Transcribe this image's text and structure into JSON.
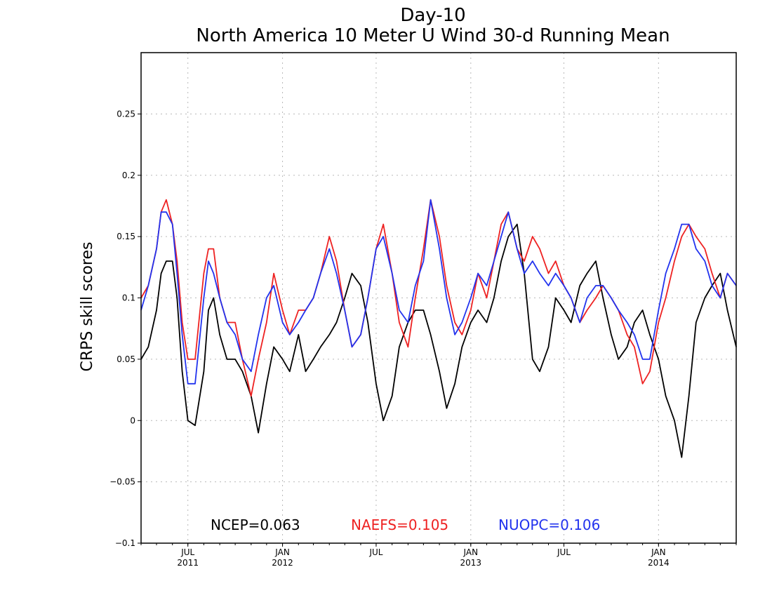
{
  "chart_data": {
    "type": "line",
    "title": "Day-10",
    "subtitle": "North America 10 Meter U Wind 30-d Running Mean",
    "xlabel": "",
    "ylabel": "CRPS skill scores",
    "ylim": [
      -0.1,
      0.3
    ],
    "xlim": [
      "2011-04-01",
      "2014-06-01"
    ],
    "grid": true,
    "yticks": [
      {
        "value": -0.1,
        "label": "−0.1"
      },
      {
        "value": -0.05,
        "label": "−0.05"
      },
      {
        "value": 0,
        "label": "0"
      },
      {
        "value": 0.05,
        "label": "0.05"
      },
      {
        "value": 0.1,
        "label": "0.1"
      },
      {
        "value": 0.15,
        "label": "0.15"
      },
      {
        "value": 0.2,
        "label": "0.2"
      },
      {
        "value": 0.25,
        "label": "0.25"
      }
    ],
    "xticks": [
      {
        "date": "2011-07-01",
        "label": "JUL",
        "sublabel": "2011"
      },
      {
        "date": "2012-01-01",
        "label": "JAN",
        "sublabel": "2012"
      },
      {
        "date": "2012-07-01",
        "label": "JUL",
        "sublabel": ""
      },
      {
        "date": "2013-01-01",
        "label": "JAN",
        "sublabel": "2013"
      },
      {
        "date": "2013-07-01",
        "label": "JUL",
        "sublabel": ""
      },
      {
        "date": "2014-01-01",
        "label": "JAN",
        "sublabel": "2014"
      }
    ],
    "legend_placement": "bottom-center",
    "x": [
      "2011-04-01",
      "2011-04-15",
      "2011-05-01",
      "2011-05-10",
      "2011-05-20",
      "2011-06-01",
      "2011-06-10",
      "2011-06-20",
      "2011-07-01",
      "2011-07-15",
      "2011-08-01",
      "2011-08-10",
      "2011-08-20",
      "2011-09-01",
      "2011-09-15",
      "2011-10-01",
      "2011-10-15",
      "2011-11-01",
      "2011-11-15",
      "2011-12-01",
      "2011-12-15",
      "2012-01-01",
      "2012-01-15",
      "2012-02-01",
      "2012-02-15",
      "2012-03-01",
      "2012-03-15",
      "2012-04-01",
      "2012-04-15",
      "2012-05-01",
      "2012-05-15",
      "2012-06-01",
      "2012-06-15",
      "2012-07-01",
      "2012-07-15",
      "2012-08-01",
      "2012-08-15",
      "2012-09-01",
      "2012-09-15",
      "2012-10-01",
      "2012-10-15",
      "2012-11-01",
      "2012-11-15",
      "2012-12-01",
      "2012-12-15",
      "2013-01-01",
      "2013-01-15",
      "2013-02-01",
      "2013-02-15",
      "2013-03-01",
      "2013-03-15",
      "2013-04-01",
      "2013-04-15",
      "2013-05-01",
      "2013-05-15",
      "2013-06-01",
      "2013-06-15",
      "2013-07-01",
      "2013-07-15",
      "2013-08-01",
      "2013-08-15",
      "2013-09-01",
      "2013-09-15",
      "2013-10-01",
      "2013-10-15",
      "2013-11-01",
      "2013-11-15",
      "2013-12-01",
      "2013-12-15",
      "2014-01-01",
      "2014-01-15",
      "2014-02-01",
      "2014-02-15",
      "2014-03-01",
      "2014-03-15",
      "2014-04-01",
      "2014-04-15",
      "2014-05-01",
      "2014-05-15",
      "2014-06-01"
    ],
    "series": [
      {
        "name": "NCEP",
        "color": "#000000",
        "values": [
          0.05,
          0.06,
          0.09,
          0.12,
          0.13,
          0.13,
          0.1,
          0.04,
          0.0,
          -0.004,
          0.04,
          0.09,
          0.1,
          0.07,
          0.05,
          0.05,
          0.04,
          0.02,
          -0.01,
          0.03,
          0.06,
          0.05,
          0.04,
          0.07,
          0.04,
          0.05,
          0.06,
          0.07,
          0.08,
          0.1,
          0.12,
          0.11,
          0.08,
          0.03,
          0.0,
          0.02,
          0.06,
          0.08,
          0.09,
          0.09,
          0.07,
          0.04,
          0.01,
          0.03,
          0.06,
          0.08,
          0.09,
          0.08,
          0.1,
          0.13,
          0.15,
          0.16,
          0.12,
          0.05,
          0.04,
          0.06,
          0.1,
          0.09,
          0.08,
          0.11,
          0.12,
          0.13,
          0.1,
          0.07,
          0.05,
          0.06,
          0.08,
          0.09,
          0.07,
          0.05,
          0.02,
          0.0,
          -0.03,
          0.02,
          0.08,
          0.1,
          0.11,
          0.12,
          0.09,
          0.06
        ]
      },
      {
        "name": "NAEFS",
        "color": "#ee2222",
        "values": [
          0.1,
          0.11,
          0.14,
          0.17,
          0.18,
          0.16,
          0.13,
          0.08,
          0.05,
          0.05,
          0.12,
          0.14,
          0.14,
          0.1,
          0.08,
          0.08,
          0.05,
          0.02,
          0.05,
          0.08,
          0.12,
          0.09,
          0.07,
          0.09,
          0.09,
          0.1,
          0.12,
          0.15,
          0.13,
          0.09,
          0.06,
          0.07,
          0.1,
          0.14,
          0.16,
          0.12,
          0.08,
          0.06,
          0.1,
          0.14,
          0.18,
          0.15,
          0.11,
          0.08,
          0.07,
          0.09,
          0.12,
          0.1,
          0.13,
          0.16,
          0.17,
          0.14,
          0.13,
          0.15,
          0.14,
          0.12,
          0.13,
          0.11,
          0.1,
          0.08,
          0.09,
          0.1,
          0.11,
          0.1,
          0.09,
          0.07,
          0.06,
          0.03,
          0.04,
          0.08,
          0.1,
          0.13,
          0.15,
          0.16,
          0.15,
          0.14,
          0.12,
          0.1,
          0.12,
          0.11
        ]
      },
      {
        "name": "NUOPC",
        "color": "#2233ee",
        "values": [
          0.09,
          0.11,
          0.14,
          0.17,
          0.17,
          0.16,
          0.12,
          0.07,
          0.03,
          0.03,
          0.1,
          0.13,
          0.12,
          0.1,
          0.08,
          0.07,
          0.05,
          0.04,
          0.07,
          0.1,
          0.11,
          0.08,
          0.07,
          0.08,
          0.09,
          0.1,
          0.12,
          0.14,
          0.12,
          0.09,
          0.06,
          0.07,
          0.1,
          0.14,
          0.15,
          0.12,
          0.09,
          0.08,
          0.11,
          0.13,
          0.18,
          0.14,
          0.1,
          0.07,
          0.08,
          0.1,
          0.12,
          0.11,
          0.13,
          0.15,
          0.17,
          0.14,
          0.12,
          0.13,
          0.12,
          0.11,
          0.12,
          0.11,
          0.1,
          0.08,
          0.1,
          0.11,
          0.11,
          0.1,
          0.09,
          0.08,
          0.07,
          0.05,
          0.05,
          0.09,
          0.12,
          0.14,
          0.16,
          0.16,
          0.14,
          0.13,
          0.11,
          0.1,
          0.12,
          0.11
        ]
      }
    ],
    "legend": [
      {
        "text": "NCEP=0.063",
        "color": "#000000"
      },
      {
        "text": "NAEFS=0.105",
        "color": "#ee2222"
      },
      {
        "text": "NUOPC=0.106",
        "color": "#2233ee"
      }
    ]
  }
}
